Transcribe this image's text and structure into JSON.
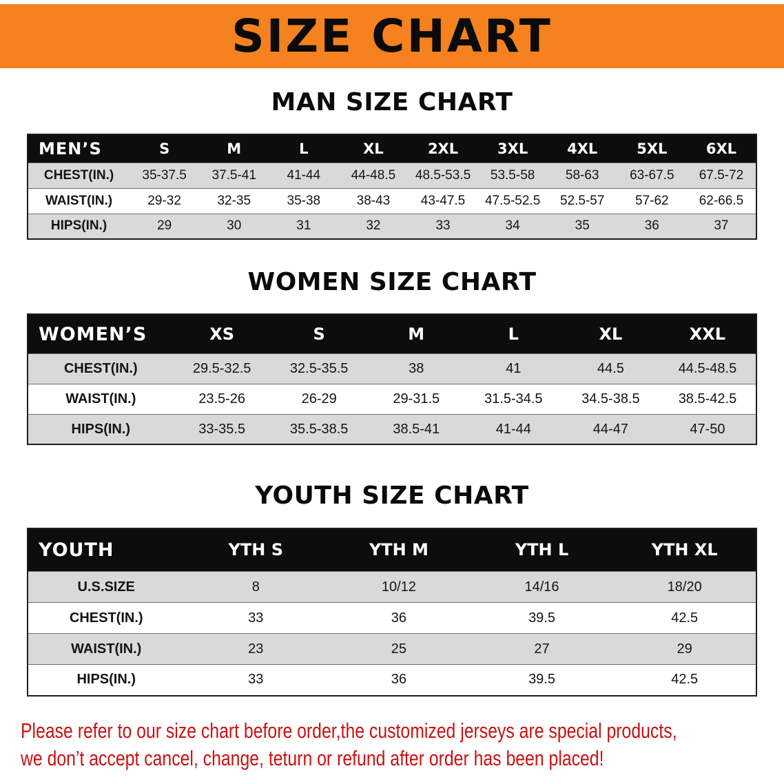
{
  "banner": {
    "title": "SIZE CHART"
  },
  "chart_data": [
    {
      "type": "table",
      "title": "MAN SIZE CHART",
      "header": [
        "MEN’S",
        "S",
        "M",
        "L",
        "XL",
        "2XL",
        "3XL",
        "4XL",
        "5XL",
        "6XL"
      ],
      "rows": [
        [
          "CHEST(IN.)",
          "35-37.5",
          "37.5-41",
          "41-44",
          "44-48.5",
          "48.5-53.5",
          "53.5-58",
          "58-63",
          "63-67.5",
          "67.5-72"
        ],
        [
          "WAIST(IN.)",
          "29-32",
          "32-35",
          "35-38",
          "38-43",
          "43-47.5",
          "47.5-52.5",
          "52.5-57",
          "57-62",
          "62-66.5"
        ],
        [
          "HIPS(IN.)",
          "29",
          "30",
          "31",
          "32",
          "33",
          "34",
          "35",
          "36",
          "37"
        ]
      ]
    },
    {
      "type": "table",
      "title": "WOMEN SIZE CHART",
      "header": [
        "WOMEN’S",
        "XS",
        "S",
        "M",
        "L",
        "XL",
        "XXL"
      ],
      "rows": [
        [
          "CHEST(IN.)",
          "29.5-32.5",
          "32.5-35.5",
          "38",
          "41",
          "44.5",
          "44.5-48.5"
        ],
        [
          "WAIST(IN.)",
          "23.5-26",
          "26-29",
          "29-31.5",
          "31.5-34.5",
          "34.5-38.5",
          "38.5-42.5"
        ],
        [
          "HIPS(IN.)",
          "33-35.5",
          "35.5-38.5",
          "38.5-41",
          "41-44",
          "44-47",
          "47-50"
        ]
      ]
    },
    {
      "type": "table",
      "title": "YOUTH SIZE CHART",
      "header": [
        "YOUTH",
        "YTH S",
        "YTH M",
        "YTH L",
        "YTH XL"
      ],
      "rows": [
        [
          "U.S.SIZE",
          "8",
          "10/12",
          "14/16",
          "18/20"
        ],
        [
          "CHEST(IN.)",
          "33",
          "36",
          "39.5",
          "42.5"
        ],
        [
          "WAIST(IN.)",
          "23",
          "25",
          "27",
          "29"
        ],
        [
          "HIPS(IN.)",
          "33",
          "36",
          "39.5",
          "42.5"
        ]
      ]
    }
  ],
  "disclaimer": {
    "line1": "Please refer to our size chart before order,the customized jerseys are special products,",
    "line2": "we don’t accept cancel, change, teturn or refund after order has been placed!"
  },
  "colors": {
    "banner_bg": "#F5821F",
    "header_bg": "#0D0D0D",
    "stripe_bg": "#D9D9D9",
    "disclaimer_color": "#CC1111"
  }
}
